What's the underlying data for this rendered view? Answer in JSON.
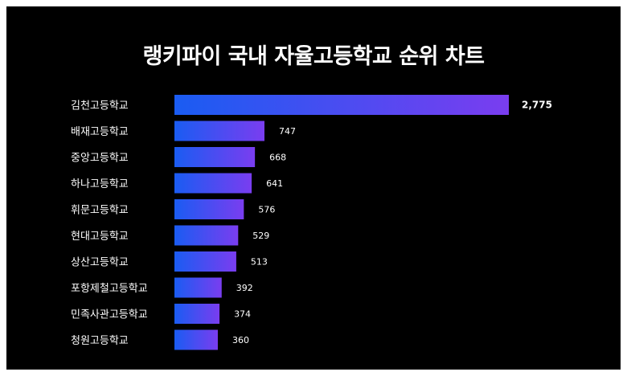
{
  "colors": {
    "background": "#000000",
    "text": "#ffffff",
    "bar_gradient_start": "#1a5cf2",
    "bar_gradient_end": "#7a3df0"
  },
  "chart_data": {
    "type": "bar",
    "orientation": "horizontal",
    "title": "랭키파이 국내 자율고등학교 순위 차트",
    "categories": [
      "김천고등학교",
      "배재고등학교",
      "중앙고등학교",
      "하나고등학교",
      "휘문고등학교",
      "현대고등학교",
      "상산고등학교",
      "포항제철고등학교",
      "민족사관고등학교",
      "청원고등학교"
    ],
    "values": [
      2775,
      747,
      668,
      641,
      576,
      529,
      513,
      392,
      374,
      360
    ],
    "value_labels": [
      "2,775",
      "747",
      "668",
      "641",
      "576",
      "529",
      "513",
      "392",
      "374",
      "360"
    ],
    "xlim": [
      0,
      2775
    ],
    "grid": false,
    "legend": "none"
  }
}
